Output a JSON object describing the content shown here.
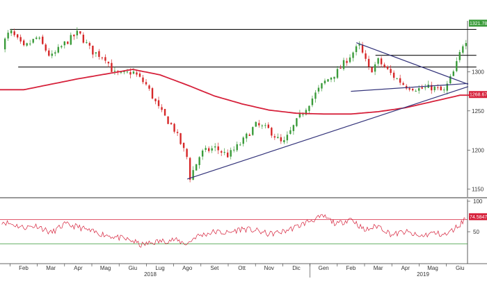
{
  "chart_data": [
    {
      "type": "candlestick",
      "panel": "price",
      "x_axis_labels": [
        "Feb",
        "Mar",
        "Apr",
        "Mag",
        "Giu",
        "Lug",
        "Ago",
        "Set",
        "Ott",
        "Nov",
        "Dic",
        "Gen",
        "Feb",
        "Mar",
        "Apr",
        "Mag",
        "Giu"
      ],
      "year_labels": [
        "2018",
        "2019"
      ],
      "y_ticks": [
        1150,
        1200,
        1250,
        1300
      ],
      "y_tick_labels": [
        "1150",
        "1200",
        "1250",
        "1300"
      ],
      "ylim": [
        1140,
        1365
      ],
      "last_price_label": "1321.7876",
      "moving_average_label": "1268.6799",
      "colors": {
        "up": "#3a9b3a",
        "down": "#d62728",
        "moving_average": "#d6203a",
        "trendline": "#33337a",
        "last_price_tag": "#3a9b3a",
        "ma_tag": "#d6203a"
      },
      "moving_average_points": [
        {
          "month": 0,
          "value": 1277
        },
        {
          "month": 1,
          "value": 1284
        },
        {
          "month": 2,
          "value": 1291
        },
        {
          "month": 3,
          "value": 1297
        },
        {
          "month": 4,
          "value": 1303
        },
        {
          "month": 5,
          "value": 1296
        },
        {
          "month": 6,
          "value": 1283
        },
        {
          "month": 7,
          "value": 1269
        },
        {
          "month": 8,
          "value": 1259
        },
        {
          "month": 9,
          "value": 1251
        },
        {
          "month": 10,
          "value": 1247
        },
        {
          "month": 11,
          "value": 1246
        },
        {
          "month": 12,
          "value": 1246
        },
        {
          "month": 13,
          "value": 1249
        },
        {
          "month": 14,
          "value": 1254
        },
        {
          "month": 15,
          "value": 1262
        },
        {
          "month": 16,
          "value": 1270
        }
      ],
      "horizontal_levels": [
        {
          "value": 1354,
          "from_month": -0.5,
          "to_month": 16.6
        },
        {
          "value": 1306,
          "from_month": -0.2,
          "to_month": 16.6
        },
        {
          "value": 1321,
          "from_month": 12.9,
          "to_month": 16.6
        }
      ],
      "trendlines": [
        {
          "from": {
            "month": 6.0,
            "value": 1163
          },
          "to": {
            "month": 16.3,
            "value": 1281
          }
        },
        {
          "from": {
            "month": 12.0,
            "value": 1275
          },
          "to": {
            "month": 16.3,
            "value": 1285
          }
        },
        {
          "from": {
            "month": 12.2,
            "value": 1337
          },
          "to": {
            "month": 16.3,
            "value": 1284
          }
        }
      ],
      "price_path": [
        {
          "month": -0.8,
          "value": 1333
        },
        {
          "month": -0.5,
          "value": 1352
        },
        {
          "month": 0.0,
          "value": 1330
        },
        {
          "month": 0.5,
          "value": 1344
        },
        {
          "month": 1.0,
          "value": 1318
        },
        {
          "month": 1.5,
          "value": 1336
        },
        {
          "month": 2.0,
          "value": 1350
        },
        {
          "month": 2.5,
          "value": 1326
        },
        {
          "month": 3.0,
          "value": 1318
        },
        {
          "month": 3.3,
          "value": 1298
        },
        {
          "month": 3.6,
          "value": 1296
        },
        {
          "month": 4.0,
          "value": 1300
        },
        {
          "month": 4.5,
          "value": 1283
        },
        {
          "month": 5.0,
          "value": 1250
        },
        {
          "month": 5.5,
          "value": 1228
        },
        {
          "month": 6.0,
          "value": 1190
        },
        {
          "month": 6.1,
          "value": 1165
        },
        {
          "month": 6.5,
          "value": 1196
        },
        {
          "month": 7.0,
          "value": 1203
        },
        {
          "month": 7.5,
          "value": 1193
        },
        {
          "month": 8.0,
          "value": 1210
        },
        {
          "month": 8.5,
          "value": 1232
        },
        {
          "month": 9.0,
          "value": 1226
        },
        {
          "month": 9.5,
          "value": 1207
        },
        {
          "month": 10.0,
          "value": 1236
        },
        {
          "month": 10.5,
          "value": 1262
        },
        {
          "month": 11.0,
          "value": 1286
        },
        {
          "month": 11.5,
          "value": 1300
        },
        {
          "month": 12.0,
          "value": 1322
        },
        {
          "month": 12.3,
          "value": 1333
        },
        {
          "month": 12.7,
          "value": 1300
        },
        {
          "month": 13.0,
          "value": 1314
        },
        {
          "month": 13.5,
          "value": 1296
        },
        {
          "month": 14.0,
          "value": 1282
        },
        {
          "month": 14.5,
          "value": 1278
        },
        {
          "month": 15.0,
          "value": 1280
        },
        {
          "month": 15.4,
          "value": 1274
        },
        {
          "month": 15.8,
          "value": 1302
        },
        {
          "month": 16.1,
          "value": 1335
        },
        {
          "month": 16.5,
          "value": 1354
        }
      ]
    },
    {
      "type": "line",
      "panel": "indicator",
      "y_ticks": [
        50,
        100
      ],
      "y_tick_labels": [
        "50",
        "100"
      ],
      "ylim": [
        0,
        100
      ],
      "last_value_label": "74.5847",
      "upper_level": 70,
      "lower_level": 30,
      "colors": {
        "line": "#d6203a",
        "upper": "#d6203a",
        "lower": "#3a9b3a",
        "tag": "#d6203a"
      },
      "path": [
        {
          "month": -0.8,
          "value": 67
        },
        {
          "month": 0.0,
          "value": 57
        },
        {
          "month": 0.5,
          "value": 60
        },
        {
          "month": 1.0,
          "value": 48
        },
        {
          "month": 1.5,
          "value": 62
        },
        {
          "month": 2.0,
          "value": 58
        },
        {
          "month": 2.5,
          "value": 50
        },
        {
          "month": 3.0,
          "value": 45
        },
        {
          "month": 3.5,
          "value": 40
        },
        {
          "month": 4.0,
          "value": 35
        },
        {
          "month": 4.3,
          "value": 28
        },
        {
          "month": 4.8,
          "value": 33
        },
        {
          "month": 5.5,
          "value": 37
        },
        {
          "month": 6.0,
          "value": 30
        },
        {
          "month": 6.3,
          "value": 42
        },
        {
          "month": 7.0,
          "value": 50
        },
        {
          "month": 7.5,
          "value": 48
        },
        {
          "month": 8.0,
          "value": 55
        },
        {
          "month": 8.5,
          "value": 52
        },
        {
          "month": 9.0,
          "value": 46
        },
        {
          "month": 9.5,
          "value": 50
        },
        {
          "month": 10.0,
          "value": 58
        },
        {
          "month": 10.5,
          "value": 68
        },
        {
          "month": 11.0,
          "value": 75
        },
        {
          "month": 11.5,
          "value": 62
        },
        {
          "month": 12.0,
          "value": 72
        },
        {
          "month": 12.5,
          "value": 52
        },
        {
          "month": 13.0,
          "value": 60
        },
        {
          "month": 13.5,
          "value": 45
        },
        {
          "month": 14.0,
          "value": 50
        },
        {
          "month": 14.5,
          "value": 42
        },
        {
          "month": 15.0,
          "value": 48
        },
        {
          "month": 15.5,
          "value": 45
        },
        {
          "month": 16.0,
          "value": 62
        },
        {
          "month": 16.3,
          "value": 78
        },
        {
          "month": 16.5,
          "value": 74.6
        }
      ]
    }
  ]
}
